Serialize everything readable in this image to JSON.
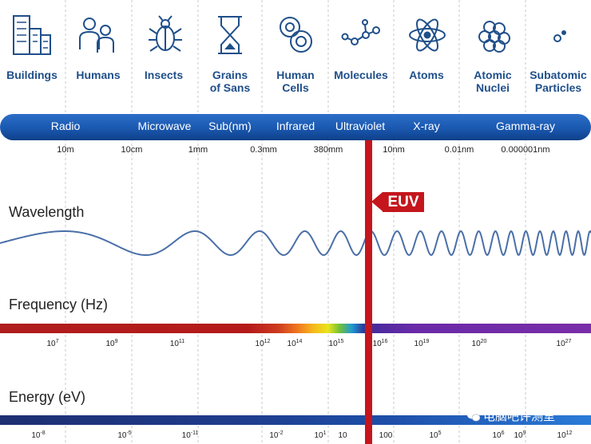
{
  "scales": [
    {
      "label": "Buildings",
      "icon": "buildings-icon"
    },
    {
      "label": "Humans",
      "icon": "humans-icon"
    },
    {
      "label": "Insects",
      "icon": "insect-icon"
    },
    {
      "label": "Grains\nof Sans",
      "icon": "hourglass-icon"
    },
    {
      "label": "Human\nCells",
      "icon": "cells-icon"
    },
    {
      "label": "Molecules",
      "icon": "molecule-icon"
    },
    {
      "label": "Atoms",
      "icon": "atom-icon"
    },
    {
      "label": "Atomic\nNuclei",
      "icon": "nucleus-icon"
    },
    {
      "label": "Subatomic\nParticles",
      "icon": "particle-icon"
    }
  ],
  "bands": [
    "Radio",
    "Microwave",
    "Sub(nm)",
    "Infrared",
    "Ultraviolet",
    "X-ray",
    "Gamma-ray"
  ],
  "wavelength": {
    "title": "Wavelength",
    "ticks": [
      "10m",
      "10cm",
      "1mm",
      "0.3mm",
      "380mm",
      "10nm",
      "0.01nm",
      "0.000001nm"
    ]
  },
  "frequency": {
    "title": "Frequency (Hz)",
    "ticks": [
      {
        "base": "10",
        "exp": "7"
      },
      {
        "base": "10",
        "exp": "9"
      },
      {
        "base": "10",
        "exp": "11"
      },
      {
        "base": "10",
        "exp": "12"
      },
      {
        "base": "10",
        "exp": "14"
      },
      {
        "base": "10",
        "exp": "15"
      },
      {
        "base": "10",
        "exp": "16"
      },
      {
        "base": "10",
        "exp": "19"
      },
      {
        "base": "10",
        "exp": "20"
      },
      {
        "base": "10",
        "exp": "27"
      }
    ]
  },
  "energy": {
    "title": "Energy (eV)",
    "ticks": [
      {
        "base": "10",
        "exp": "-8"
      },
      {
        "base": "10",
        "exp": "-5"
      },
      {
        "base": "10",
        "exp": "-11"
      },
      {
        "base": "10",
        "exp": "-2"
      },
      {
        "base": "10",
        "exp": "1"
      },
      {
        "base": "10",
        "exp": ""
      },
      {
        "base": "100",
        "exp": ""
      },
      {
        "base": "10",
        "exp": "5"
      },
      {
        "base": "10",
        "exp": "6"
      },
      {
        "base": "10",
        "exp": "9"
      },
      {
        "base": "10",
        "exp": "12"
      }
    ]
  },
  "euv_label": "EUV",
  "watermark": "电脑吧评测室",
  "colors": {
    "primary_blue": "#1f4f8a",
    "euv_red": "#c4161c",
    "band_blue": "#1a58b0"
  }
}
